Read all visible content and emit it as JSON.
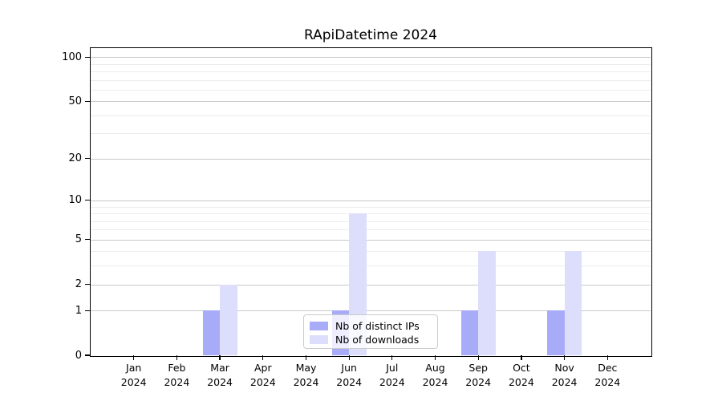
{
  "chart_data": {
    "type": "bar",
    "title": "RApiDatetime 2024",
    "x_year": "2024",
    "categories": [
      "Jan",
      "Feb",
      "Mar",
      "Apr",
      "May",
      "Jun",
      "Jul",
      "Aug",
      "Sep",
      "Oct",
      "Nov",
      "Dec"
    ],
    "series": [
      {
        "name": "Nb of distinct IPs",
        "color": "#a8abf7",
        "values": [
          0,
          0,
          1,
          0,
          0,
          1,
          0,
          0,
          1,
          0,
          1,
          0
        ]
      },
      {
        "name": "Nb of downloads",
        "color": "#dcdefb",
        "values": [
          0,
          0,
          2,
          0,
          0,
          8,
          0,
          0,
          4,
          0,
          4,
          0
        ]
      }
    ],
    "y_scale": "log1p",
    "ylim": [
      0,
      115
    ],
    "y_major_ticks": [
      0,
      1,
      2,
      5,
      10,
      20,
      50,
      100
    ],
    "y_minor_gridlines": [
      3,
      4,
      6,
      7,
      8,
      9,
      30,
      40,
      60,
      70,
      80,
      90
    ],
    "grid": true,
    "legend_position": "lower center",
    "colors": {
      "major_grid": "#c8c8c8",
      "minor_grid": "#ececec",
      "axis": "#000000",
      "background": "#ffffff"
    }
  }
}
